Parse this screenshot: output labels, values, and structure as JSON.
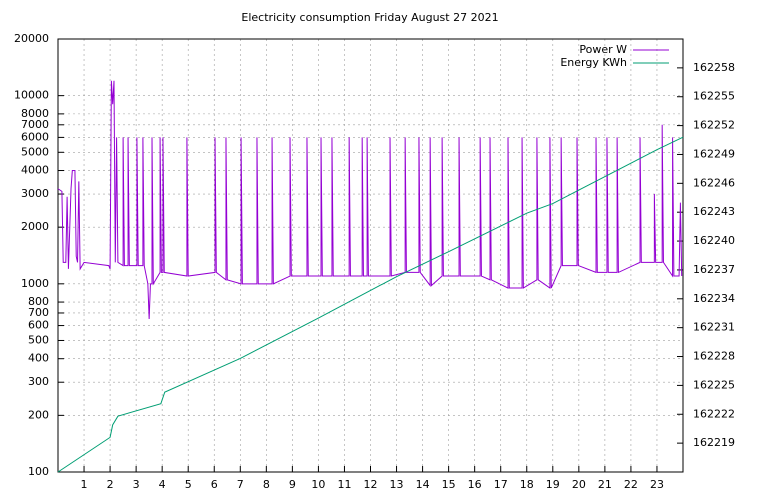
{
  "chart_data": {
    "type": "line",
    "title": "Electricity consumption Friday August 27 2021",
    "xlim": [
      0,
      24
    ],
    "xticks": [
      1,
      2,
      3,
      4,
      5,
      6,
      7,
      8,
      9,
      10,
      11,
      12,
      13,
      14,
      15,
      16,
      17,
      18,
      19,
      20,
      21,
      22,
      23
    ],
    "ylim": [
      100,
      20000
    ],
    "log_y": true,
    "yticks": [
      100,
      200,
      300,
      400,
      500,
      600,
      700,
      800,
      1000,
      2000,
      3000,
      4000,
      5000,
      6000,
      7000,
      8000,
      10000,
      20000
    ],
    "y2lim": [
      162216,
      162261
    ],
    "y2ticks": [
      162219,
      162222,
      162225,
      162228,
      162231,
      162234,
      162237,
      162240,
      162243,
      162246,
      162249,
      162252,
      162255,
      162258
    ],
    "grid": true,
    "legend": "top-right",
    "series": [
      {
        "name": "Power W",
        "color": "#9400d3",
        "x": [
          0,
          0.15,
          0.2,
          0.3,
          0.35,
          0.4,
          0.5,
          0.55,
          0.65,
          0.7,
          0.75,
          0.8,
          0.85,
          1.0,
          1.95,
          2.0,
          2.05,
          2.1,
          2.15,
          2.2,
          2.25,
          2.3,
          2.5,
          2.5,
          2.55,
          2.69,
          2.69,
          2.74,
          3.03,
          3.03,
          3.08,
          3.26,
          3.26,
          3.31,
          3.45,
          3.5,
          3.55,
          3.61,
          3.61,
          3.66,
          3.92,
          3.92,
          3.97,
          4.03,
          4.03,
          4.08,
          4.95,
          4.95,
          5.0,
          6.03,
          6.03,
          6.08,
          6.45,
          6.45,
          6.5,
          7.03,
          7.03,
          7.08,
          7.64,
          7.64,
          7.69,
          8.22,
          8.22,
          8.27,
          8.91,
          8.91,
          8.96,
          9.56,
          9.56,
          9.61,
          10.1,
          10.1,
          10.15,
          10.52,
          10.52,
          10.57,
          11.18,
          11.18,
          11.23,
          11.68,
          11.68,
          11.73,
          11.87,
          11.87,
          11.92,
          12.75,
          12.75,
          12.8,
          13.33,
          13.33,
          13.38,
          13.86,
          13.86,
          13.91,
          14.29,
          14.29,
          14.34,
          14.75,
          14.75,
          14.8,
          15.4,
          15.4,
          15.45,
          16.21,
          16.21,
          16.26,
          16.59,
          16.59,
          16.64,
          17.28,
          17.28,
          17.33,
          17.82,
          17.82,
          17.87,
          18.39,
          18.39,
          18.44,
          18.89,
          18.89,
          18.94,
          19.32,
          19.32,
          19.37,
          19.93,
          19.93,
          19.98,
          20.66,
          20.66,
          20.71,
          21.08,
          21.08,
          21.13,
          21.47,
          21.47,
          21.52,
          22.35,
          22.35,
          22.4,
          22.9,
          22.9,
          22.95,
          23.2,
          23.2,
          23.25,
          23.6,
          23.6,
          23.65,
          23.85,
          23.9,
          23.95
        ],
        "values": [
          3200,
          3100,
          1300,
          1300,
          2900,
          1200,
          3200,
          4000,
          4000,
          1400,
          1300,
          3500,
          1200,
          1300,
          1250,
          1200,
          12000,
          9000,
          12000,
          1300,
          6000,
          1300,
          1250,
          6000,
          1250,
          1250,
          6000,
          1250,
          1250,
          6000,
          1250,
          1250,
          6000,
          1250,
          1000,
          650,
          1000,
          1000,
          6000,
          1000,
          1150,
          6000,
          1150,
          1150,
          6000,
          1150,
          1100,
          6000,
          1100,
          1150,
          6000,
          1150,
          1050,
          6000,
          1050,
          1000,
          6000,
          1000,
          1000,
          6000,
          1000,
          1000,
          6000,
          1000,
          1100,
          6000,
          1100,
          1100,
          6000,
          1100,
          1100,
          6000,
          1100,
          1100,
          6000,
          1100,
          1100,
          6000,
          1100,
          1100,
          6000,
          1100,
          1100,
          6000,
          1100,
          1100,
          6000,
          1100,
          1150,
          6000,
          1150,
          1150,
          6000,
          1150,
          980,
          6000,
          980,
          1100,
          6000,
          1100,
          1100,
          6000,
          1100,
          1100,
          6000,
          1100,
          1050,
          6000,
          1050,
          950,
          6000,
          950,
          950,
          6000,
          950,
          1050,
          6000,
          1050,
          950,
          6000,
          950,
          1250,
          6000,
          1250,
          1250,
          6000,
          1250,
          1150,
          6000,
          1150,
          1150,
          6000,
          1150,
          1150,
          6000,
          1150,
          1300,
          6000,
          1300,
          1300,
          3000,
          1300,
          1300,
          7000,
          1300,
          1100,
          6000,
          1100,
          1100,
          2700,
          1100
        ]
      },
      {
        "name": "Energy KWh",
        "color": "#009e73",
        "axis": "y2",
        "x": [
          0,
          2,
          2.1,
          2.3,
          3.95,
          4.1,
          7,
          10,
          13,
          15,
          18,
          19,
          20,
          23,
          24
        ],
        "values": [
          162216,
          162219.6,
          162220.9,
          162221.8,
          162223.1,
          162224.3,
          162227.8,
          162232,
          162236.3,
          162238.9,
          162242.9,
          162243.9,
          162245.3,
          162249.5,
          162250.8
        ]
      }
    ]
  }
}
